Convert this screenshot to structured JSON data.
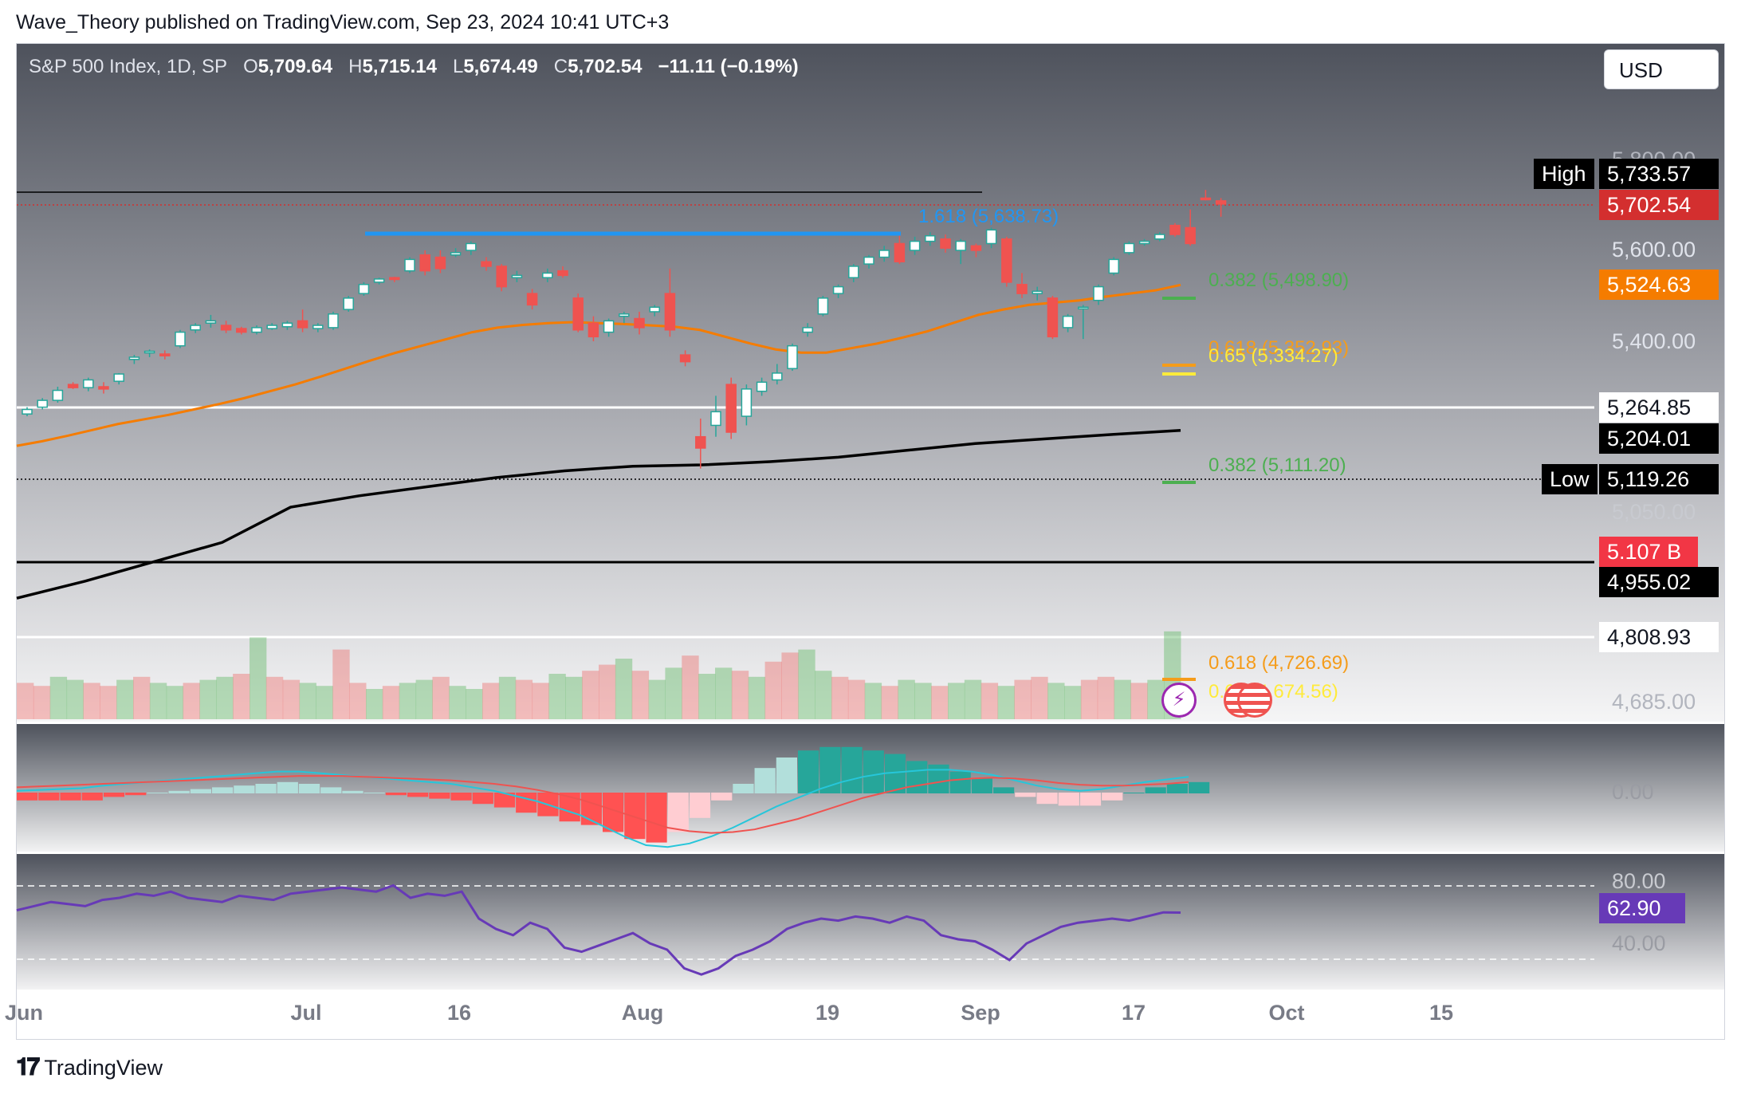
{
  "publisher_line": "Wave_Theory published on TradingView.com, Sep 23, 2024 10:41 UTC+3",
  "header": {
    "symbol": "S&P 500 Index, 1D, SP",
    "o_label": "O",
    "o_value": "5,709.64",
    "h_label": "H",
    "h_value": "5,715.14",
    "l_label": "L",
    "l_value": "5,674.49",
    "c_label": "C",
    "c_value": "5,702.54",
    "change": "−11.11 (−0.19%)"
  },
  "currency_button": "USD",
  "colors": {
    "up": "#26a69a",
    "up_fill": "#ffffff",
    "down": "#ef5350",
    "ema50": "#f57c00",
    "ema200": "#000000",
    "macd_line": "#2196f3",
    "signal_line": "#e91e63",
    "rsi": "#673ab7",
    "fib_green": "#4caf50",
    "fib_orange": "#f59c1a",
    "fib_yellow": "#ffeb3b",
    "fib_blue": "#2196f3"
  },
  "price_axis": {
    "ticks": [
      "5,800.00",
      "5,600.00",
      "5,400.00",
      "5,050.00",
      "4,685.00"
    ],
    "tags": [
      {
        "name": "high-label",
        "label": "High",
        "value": "5,733.57",
        "bg": "#000000",
        "fg": "#ffffff"
      },
      {
        "name": "last-price",
        "label": "",
        "value": "5,702.54",
        "bg": "#d32f2f",
        "fg": "#ffffff"
      },
      {
        "name": "ema50-tag",
        "label": "",
        "value": "5,524.63",
        "bg": "#f57c00",
        "fg": "#ffffff"
      },
      {
        "name": "level-5264",
        "label": "",
        "value": "5,264.85",
        "bg": "#ffffff",
        "fg": "#131722"
      },
      {
        "name": "ema200-tag",
        "label": "",
        "value": "5,204.01",
        "bg": "#000000",
        "fg": "#ffffff"
      },
      {
        "name": "low-label",
        "label": "Low",
        "value": "5,119.26",
        "bg": "#000000",
        "fg": "#ffffff"
      },
      {
        "name": "volume-tag",
        "label": "",
        "value": "5.107 B",
        "bg": "#f23645",
        "fg": "#ffffff"
      },
      {
        "name": "level-4955",
        "label": "",
        "value": "4,955.02",
        "bg": "#000000",
        "fg": "#ffffff"
      },
      {
        "name": "level-4808",
        "label": "",
        "value": "4,808.93",
        "bg": "#ffffff",
        "fg": "#131722"
      }
    ]
  },
  "fib_levels": [
    {
      "name": "fib-1618",
      "text": "1.618 (5,638.73)",
      "color": "#2196f3"
    },
    {
      "name": "fib-0382-upper",
      "text": "0.382 (5,498.90)",
      "color": "#4caf50"
    },
    {
      "name": "fib-0618-upper",
      "text": "0.618 (5,352.93)",
      "color": "#f59c1a"
    },
    {
      "name": "fib-065",
      "text": "0.65 (5,334.27)",
      "color": "#ffeb3b"
    },
    {
      "name": "fib-0382-lower",
      "text": "0.382 (5,111.20)",
      "color": "#4caf50"
    },
    {
      "name": "fib-0618-lower",
      "text": "0.618 (4,726.69)",
      "color": "#f59c1a"
    },
    {
      "name": "fib-065-lower",
      "text": "0.65 (4,674.56)",
      "color": "#ffeb3b"
    }
  ],
  "macd_axis": {
    "zero": "0.00"
  },
  "rsi_axis": {
    "upper": "80.00",
    "lower": "40.00",
    "value": "62.90"
  },
  "x_axis": [
    "Jun",
    "Jul",
    "16",
    "Aug",
    "19",
    "Sep",
    "17",
    "Oct",
    "15"
  ],
  "footer_logo": "TradingView",
  "chart_data": {
    "type": "candlestick",
    "title": "S&P 500 Index, 1D, SP",
    "ylim": [
      4685,
      5800
    ],
    "candles": [
      {
        "o": 5240,
        "h": 5255,
        "l": 5235,
        "c": 5250
      },
      {
        "o": 5255,
        "h": 5275,
        "l": 5250,
        "c": 5270
      },
      {
        "o": 5270,
        "h": 5300,
        "l": 5265,
        "c": 5292
      },
      {
        "o": 5305,
        "h": 5310,
        "l": 5295,
        "c": 5298
      },
      {
        "o": 5298,
        "h": 5320,
        "l": 5290,
        "c": 5315
      },
      {
        "o": 5300,
        "h": 5310,
        "l": 5285,
        "c": 5295
      },
      {
        "o": 5312,
        "h": 5330,
        "l": 5305,
        "c": 5328
      },
      {
        "o": 5360,
        "h": 5370,
        "l": 5350,
        "c": 5365
      },
      {
        "o": 5375,
        "h": 5382,
        "l": 5365,
        "c": 5378
      },
      {
        "o": 5372,
        "h": 5380,
        "l": 5360,
        "c": 5368
      },
      {
        "o": 5390,
        "h": 5425,
        "l": 5385,
        "c": 5420
      },
      {
        "o": 5425,
        "h": 5440,
        "l": 5418,
        "c": 5435
      },
      {
        "o": 5440,
        "h": 5458,
        "l": 5430,
        "c": 5445
      },
      {
        "o": 5435,
        "h": 5445,
        "l": 5418,
        "c": 5425
      },
      {
        "o": 5428,
        "h": 5432,
        "l": 5415,
        "c": 5420
      },
      {
        "o": 5420,
        "h": 5435,
        "l": 5415,
        "c": 5430
      },
      {
        "o": 5428,
        "h": 5440,
        "l": 5425,
        "c": 5435
      },
      {
        "o": 5432,
        "h": 5445,
        "l": 5425,
        "c": 5440
      },
      {
        "o": 5445,
        "h": 5470,
        "l": 5420,
        "c": 5430
      },
      {
        "o": 5428,
        "h": 5440,
        "l": 5420,
        "c": 5435
      },
      {
        "o": 5430,
        "h": 5465,
        "l": 5425,
        "c": 5460
      },
      {
        "o": 5470,
        "h": 5500,
        "l": 5465,
        "c": 5495
      },
      {
        "o": 5505,
        "h": 5530,
        "l": 5500,
        "c": 5525
      },
      {
        "o": 5530,
        "h": 5540,
        "l": 5525,
        "c": 5537
      },
      {
        "o": 5540,
        "h": 5542,
        "l": 5530,
        "c": 5536
      },
      {
        "o": 5555,
        "h": 5585,
        "l": 5550,
        "c": 5580
      },
      {
        "o": 5590,
        "h": 5600,
        "l": 5545,
        "c": 5555
      },
      {
        "o": 5585,
        "h": 5600,
        "l": 5550,
        "c": 5560
      },
      {
        "o": 5590,
        "h": 5605,
        "l": 5585,
        "c": 5595
      },
      {
        "o": 5600,
        "h": 5620,
        "l": 5590,
        "c": 5615
      },
      {
        "o": 5575,
        "h": 5585,
        "l": 5555,
        "c": 5565
      },
      {
        "o": 5565,
        "h": 5570,
        "l": 5510,
        "c": 5520
      },
      {
        "o": 5540,
        "h": 5555,
        "l": 5530,
        "c": 5545
      },
      {
        "o": 5505,
        "h": 5515,
        "l": 5470,
        "c": 5480
      },
      {
        "o": 5540,
        "h": 5560,
        "l": 5530,
        "c": 5550
      },
      {
        "o": 5555,
        "h": 5565,
        "l": 5540,
        "c": 5545
      },
      {
        "o": 5495,
        "h": 5505,
        "l": 5420,
        "c": 5425
      },
      {
        "o": 5440,
        "h": 5455,
        "l": 5400,
        "c": 5410
      },
      {
        "o": 5420,
        "h": 5450,
        "l": 5410,
        "c": 5445
      },
      {
        "o": 5455,
        "h": 5465,
        "l": 5440,
        "c": 5460
      },
      {
        "o": 5450,
        "h": 5465,
        "l": 5415,
        "c": 5430
      },
      {
        "o": 5465,
        "h": 5480,
        "l": 5455,
        "c": 5475
      },
      {
        "o": 5505,
        "h": 5560,
        "l": 5410,
        "c": 5425
      },
      {
        "o": 5370,
        "h": 5380,
        "l": 5345,
        "c": 5355
      },
      {
        "o": 5190,
        "h": 5230,
        "l": 5120,
        "c": 5165
      },
      {
        "o": 5215,
        "h": 5280,
        "l": 5190,
        "c": 5245
      },
      {
        "o": 5305,
        "h": 5320,
        "l": 5185,
        "c": 5200
      },
      {
        "o": 5235,
        "h": 5305,
        "l": 5215,
        "c": 5295
      },
      {
        "o": 5290,
        "h": 5320,
        "l": 5280,
        "c": 5310
      },
      {
        "o": 5315,
        "h": 5350,
        "l": 5305,
        "c": 5330
      },
      {
        "o": 5340,
        "h": 5395,
        "l": 5335,
        "c": 5390
      },
      {
        "o": 5420,
        "h": 5440,
        "l": 5410,
        "c": 5430
      },
      {
        "o": 5460,
        "h": 5500,
        "l": 5455,
        "c": 5495
      },
      {
        "o": 5505,
        "h": 5525,
        "l": 5495,
        "c": 5520
      },
      {
        "o": 5540,
        "h": 5570,
        "l": 5530,
        "c": 5565
      },
      {
        "o": 5570,
        "h": 5590,
        "l": 5560,
        "c": 5585
      },
      {
        "o": 5585,
        "h": 5610,
        "l": 5575,
        "c": 5600
      },
      {
        "o": 5615,
        "h": 5640,
        "l": 5570,
        "c": 5575
      },
      {
        "o": 5600,
        "h": 5630,
        "l": 5590,
        "c": 5620
      },
      {
        "o": 5620,
        "h": 5640,
        "l": 5610,
        "c": 5632
      },
      {
        "o": 5625,
        "h": 5635,
        "l": 5595,
        "c": 5605
      },
      {
        "o": 5600,
        "h": 5625,
        "l": 5570,
        "c": 5620
      },
      {
        "o": 5610,
        "h": 5615,
        "l": 5585,
        "c": 5600
      },
      {
        "o": 5615,
        "h": 5650,
        "l": 5605,
        "c": 5645
      },
      {
        "o": 5625,
        "h": 5630,
        "l": 5520,
        "c": 5530
      },
      {
        "o": 5525,
        "h": 5550,
        "l": 5495,
        "c": 5505
      },
      {
        "o": 5505,
        "h": 5520,
        "l": 5490,
        "c": 5510
      },
      {
        "o": 5495,
        "h": 5500,
        "l": 5405,
        "c": 5410
      },
      {
        "o": 5430,
        "h": 5460,
        "l": 5420,
        "c": 5455
      },
      {
        "o": 5475,
        "h": 5480,
        "l": 5405,
        "c": 5475
      },
      {
        "o": 5490,
        "h": 5525,
        "l": 5480,
        "c": 5520
      },
      {
        "o": 5550,
        "h": 5585,
        "l": 5545,
        "c": 5580
      },
      {
        "o": 5595,
        "h": 5620,
        "l": 5590,
        "c": 5615
      },
      {
        "o": 5615,
        "h": 5625,
        "l": 5610,
        "c": 5620
      },
      {
        "o": 5625,
        "h": 5640,
        "l": 5620,
        "c": 5635
      },
      {
        "o": 5655,
        "h": 5660,
        "l": 5630,
        "c": 5635
      },
      {
        "o": 5650,
        "h": 5690,
        "l": 5610,
        "c": 5615
      },
      {
        "o": 5715,
        "h": 5733,
        "l": 5710,
        "c": 5712
      },
      {
        "o": 5709,
        "h": 5715,
        "l": 5674,
        "c": 5702
      }
    ],
    "ema50": [
      5170,
      5180,
      5192,
      5205,
      5218,
      5228,
      5238,
      5250,
      5262,
      5275,
      5290,
      5305,
      5322,
      5340,
      5358,
      5375,
      5390,
      5405,
      5420,
      5430,
      5436,
      5440,
      5442,
      5440,
      5438,
      5435,
      5432,
      5425,
      5410,
      5395,
      5382,
      5375,
      5375,
      5385,
      5395,
      5408,
      5422,
      5440,
      5458,
      5470,
      5480,
      5485,
      5490,
      5498,
      5505,
      5512,
      5524
    ],
    "ema200": [
      4940,
      4960,
      4985,
      5010,
      5035,
      5060,
      5080,
      5100,
      5115,
      5125,
      5128,
      5135,
      5145,
      5160,
      5175,
      5185,
      5195,
      5204
    ],
    "volume": [
      3.4,
      3.3,
      3.6,
      3.5,
      3.4,
      3.3,
      3.5,
      3.6,
      3.4,
      3.3,
      3.4,
      3.5,
      3.6,
      3.7,
      4.9,
      3.6,
      3.5,
      3.4,
      3.3,
      4.5,
      3.4,
      3.2,
      3.3,
      3.4,
      3.5,
      3.6,
      3.3,
      3.2,
      3.4,
      3.6,
      3.5,
      3.4,
      3.7,
      3.6,
      3.8,
      4.0,
      4.2,
      3.8,
      3.5,
      3.9,
      4.3,
      3.7,
      3.9,
      3.8,
      3.6,
      4.1,
      4.4,
      4.5,
      3.8,
      3.6,
      3.5,
      3.4,
      3.3,
      3.5,
      3.4,
      3.3,
      3.4,
      3.5,
      3.4,
      3.3,
      3.5,
      3.6,
      3.4,
      3.3,
      3.5,
      3.6,
      3.5,
      3.4,
      3.5,
      5.1
    ],
    "macd": [
      2,
      3,
      4,
      5,
      8,
      10,
      12,
      14,
      16,
      18,
      20,
      22,
      24,
      24,
      22,
      20,
      18,
      16,
      14,
      12,
      10,
      6,
      2,
      -4,
      -10,
      -18,
      -26,
      -38,
      -50,
      -60,
      -62,
      -58,
      -50,
      -40,
      -28,
      -16,
      -6,
      4,
      12,
      18,
      22,
      24,
      26,
      26,
      24,
      20,
      14,
      8,
      4,
      2,
      4,
      8,
      12,
      15,
      18
    ],
    "signal": [
      6,
      7,
      8,
      9,
      10,
      11,
      12,
      13,
      14,
      15,
      16,
      17,
      18,
      19,
      19,
      19,
      18,
      17,
      16,
      15,
      14,
      12,
      10,
      7,
      3,
      -2,
      -8,
      -16,
      -24,
      -32,
      -40,
      -44,
      -46,
      -45,
      -42,
      -36,
      -30,
      -22,
      -14,
      -6,
      0,
      6,
      10,
      14,
      16,
      17,
      16,
      14,
      11,
      9,
      8,
      8,
      9,
      10,
      12
    ],
    "rsi": [
      64,
      66,
      68,
      67,
      66,
      69,
      70,
      72,
      71,
      73,
      70,
      69,
      68,
      71,
      70,
      69,
      72,
      73,
      74,
      75,
      74,
      73,
      76,
      70,
      72,
      71,
      73,
      60,
      55,
      52,
      58,
      55,
      46,
      44,
      47,
      50,
      53,
      48,
      45,
      36,
      33,
      36,
      42,
      45,
      49,
      55,
      58,
      60,
      59,
      61,
      60,
      58,
      61,
      59,
      52,
      50,
      49,
      45,
      40,
      48,
      52,
      56,
      58,
      59,
      60,
      59,
      61,
      63,
      62.9
    ]
  }
}
